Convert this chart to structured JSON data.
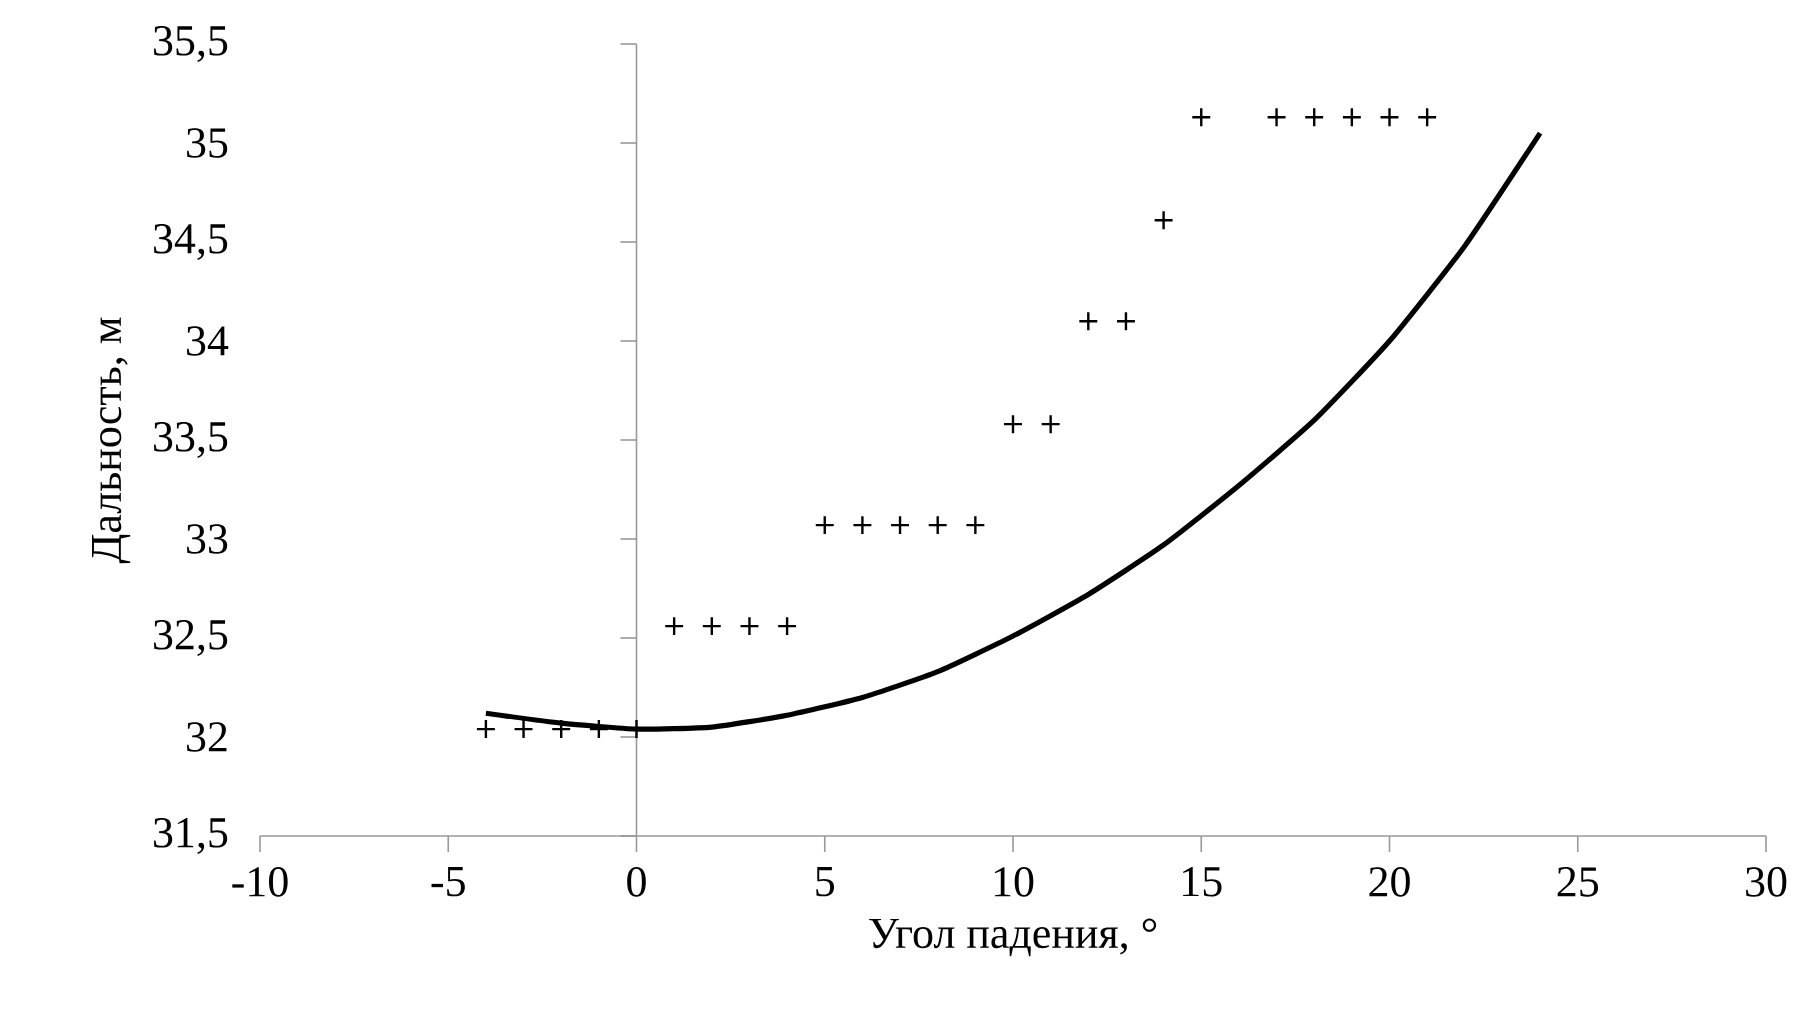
{
  "chart_data": {
    "type": "scatter",
    "xlabel": "Угол падения, °",
    "ylabel": "Дальность, м",
    "xlim": [
      -10,
      30
    ],
    "xticks": [
      -10,
      -5,
      0,
      5,
      10,
      15,
      20,
      25,
      30
    ],
    "ylim": [
      31.5,
      35.5
    ],
    "yticks": [
      {
        "value": 31.5,
        "label": "31,5"
      },
      32,
      {
        "value": 32.5,
        "label": "32,5"
      },
      33,
      {
        "value": 33.5,
        "label": "33,5"
      },
      34,
      {
        "value": 34.5,
        "label": "34,5"
      },
      35,
      {
        "value": 35.5,
        "label": "35,5"
      }
    ],
    "series": [
      {
        "marker": "cross",
        "color": "#000000",
        "x": [
          -4,
          -3,
          -2,
          -1,
          0,
          1,
          2,
          3,
          4,
          5,
          6,
          7,
          8,
          9,
          10,
          11,
          12,
          13,
          14,
          15,
          17,
          18,
          19,
          20,
          21
        ],
        "values": [
          32.04,
          32.04,
          32.04,
          32.04,
          32.04,
          32.56,
          32.56,
          32.56,
          32.56,
          33.07,
          33.07,
          33.07,
          33.07,
          33.07,
          33.58,
          33.58,
          34.1,
          34.1,
          34.61,
          35.13,
          35.13,
          35.13,
          35.13,
          35.13,
          35.13
        ]
      },
      {
        "type": "line",
        "marker": "none",
        "line_style": "solid",
        "color": "#000000",
        "x": [
          -4,
          -2,
          0,
          2,
          4,
          6,
          8,
          10,
          12,
          14,
          16,
          18,
          20,
          22,
          24
        ],
        "values": [
          32.12,
          32.07,
          32.04,
          32.05,
          32.11,
          32.2,
          32.33,
          32.51,
          32.72,
          32.97,
          33.27,
          33.6,
          34.0,
          34.48,
          35.05
        ]
      }
    ]
  }
}
